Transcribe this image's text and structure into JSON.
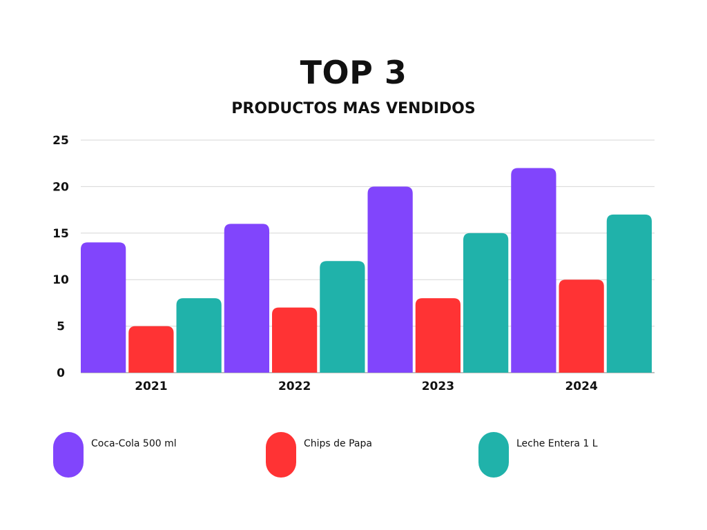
{
  "chart_data": {
    "type": "bar",
    "title": "TOP 3",
    "subtitle": "PRODUCTOS MAS VENDIDOS",
    "categories": [
      "2021",
      "2022",
      "2023",
      "2024"
    ],
    "series": [
      {
        "name": "Coca-Cola 500 ml",
        "color": "#8145fc",
        "values": [
          14,
          16,
          20,
          22
        ]
      },
      {
        "name": "Chips de Papa",
        "color": "#ff3334",
        "values": [
          5,
          7,
          8,
          10
        ]
      },
      {
        "name": "Leche Entera 1 L",
        "color": "#20b2aa",
        "values": [
          8,
          12,
          15,
          17
        ]
      }
    ],
    "yticks": [
      "0",
      "5",
      "10",
      "15",
      "20",
      "25"
    ],
    "ylim": [
      0,
      25
    ],
    "grid": true,
    "legend_position": "bottom"
  }
}
